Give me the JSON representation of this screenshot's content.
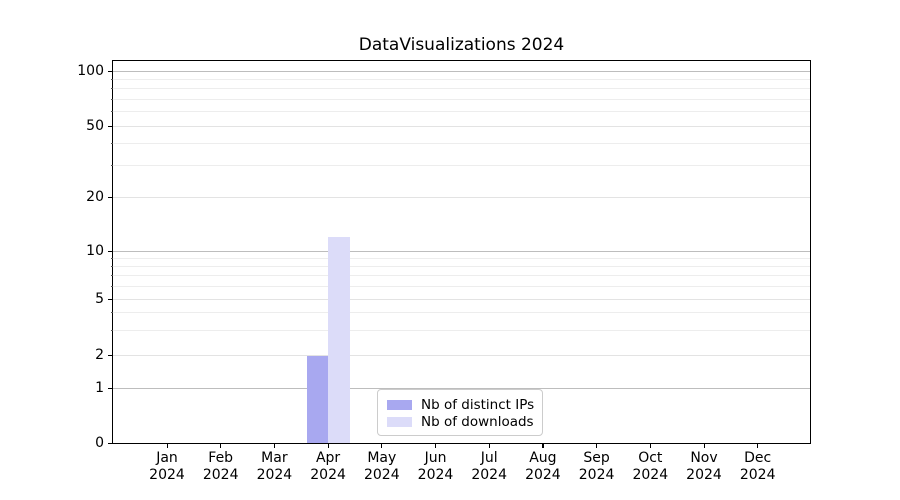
{
  "chart_data": {
    "type": "bar",
    "title": "DataVisualizations 2024",
    "categories": [
      "Jan",
      "Feb",
      "Mar",
      "Apr",
      "May",
      "Jun",
      "Jul",
      "Aug",
      "Sep",
      "Oct",
      "Nov",
      "Dec"
    ],
    "category_year": "2024",
    "series": [
      {
        "name": "Nb of distinct IPs",
        "color": "#a8a8f0",
        "values": [
          0,
          0,
          0,
          2,
          0,
          0,
          0,
          0,
          0,
          0,
          0,
          0
        ]
      },
      {
        "name": "Nb of downloads",
        "color": "#dcdcf9",
        "values": [
          0,
          0,
          0,
          12,
          0,
          0,
          0,
          0,
          0,
          0,
          0,
          0
        ]
      }
    ],
    "y_ticks": [
      0,
      1,
      2,
      5,
      10,
      20,
      50,
      100
    ],
    "y_minor_ticks": [
      3,
      4,
      6,
      7,
      8,
      9,
      30,
      40,
      60,
      70,
      80,
      90
    ],
    "y_scale": "symlog",
    "ylim": [
      0,
      112
    ],
    "grid": true,
    "legend_position": "lower center",
    "colors": {
      "spine": "#000000",
      "grid_major": "#bdbdbd",
      "grid_mid": "#e3e3e3",
      "grid_minor": "#ededed",
      "text": "#000000",
      "legend_border": "#cccccc"
    }
  }
}
